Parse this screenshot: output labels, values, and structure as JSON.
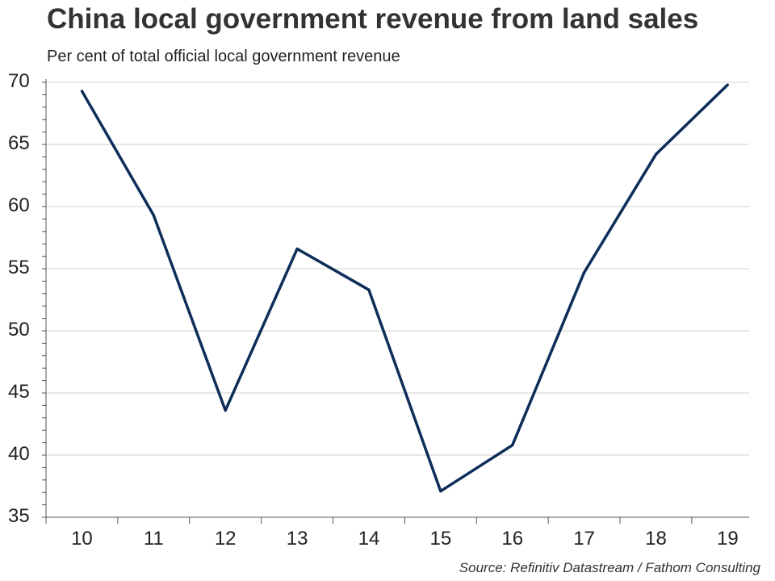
{
  "title": "China local government revenue from land sales",
  "subtitle": "Per cent of total official local government revenue",
  "source": "Source: Refinitiv Datastream / Fathom Consulting",
  "colors": {
    "line": "#0d2d5a",
    "grid": "#d0d0d0",
    "axis": "#555555"
  },
  "chart_data": {
    "type": "line",
    "title": "China local government revenue from land sales",
    "subtitle": "Per cent of total official local government revenue",
    "xlabel": "",
    "ylabel": "",
    "x": [
      10,
      11,
      12,
      13,
      14,
      15,
      16,
      17,
      18,
      19
    ],
    "x_tick_labels": [
      "10",
      "11",
      "12",
      "13",
      "14",
      "15",
      "16",
      "17",
      "18",
      "19"
    ],
    "y_tick_labels": [
      "35",
      "40",
      "45",
      "50",
      "55",
      "60",
      "65",
      "70"
    ],
    "ylim": [
      35,
      70
    ],
    "grid": true,
    "series": [
      {
        "values": [
          69.3,
          59.3,
          43.6,
          56.6,
          53.3,
          37.1,
          40.8,
          54.7,
          64.2,
          69.8
        ]
      }
    ]
  }
}
